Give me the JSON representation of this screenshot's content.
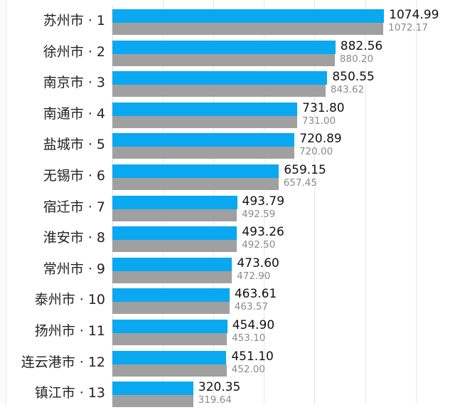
{
  "chart_data": {
    "type": "bar",
    "orientation": "horizontal",
    "title": "",
    "xlabel": "",
    "ylabel": "",
    "xlim": [
      0,
      1300
    ],
    "grid": true,
    "legend": null,
    "categories": [
      "苏州市 · 1",
      "徐州市 · 2",
      "南京市 · 3",
      "南通市 · 4",
      "盐城市 · 5",
      "无锡市 · 6",
      "宿迁市 · 7",
      "淮安市 · 8",
      "常州市 · 9",
      "泰州市 · 10",
      "扬州市 · 11",
      "连云港市 · 12",
      "镇江市 · 13"
    ],
    "series": [
      {
        "name": "current",
        "color": "#0aa8f0",
        "values": [
          1074.99,
          882.56,
          850.55,
          731.8,
          720.89,
          659.15,
          493.79,
          493.26,
          473.6,
          463.61,
          454.9,
          451.1,
          320.35
        ],
        "labels": [
          "1074.99",
          "882.56",
          "850.55",
          "731.80",
          "720.89",
          "659.15",
          "493.79",
          "493.26",
          "473.60",
          "463.61",
          "454.90",
          "451.10",
          "320.35"
        ]
      },
      {
        "name": "previous",
        "color": "#a0a0a0",
        "values": [
          1072.17,
          880.2,
          843.62,
          731.0,
          720.0,
          657.45,
          492.59,
          492.5,
          472.9,
          463.57,
          453.1,
          452.0,
          319.64
        ],
        "labels": [
          "1072.17",
          "880.20",
          "843.62",
          "731.00",
          "720.00",
          "657.45",
          "492.59",
          "492.50",
          "472.90",
          "463.57",
          "453.10",
          "452.00",
          "319.64"
        ]
      }
    ]
  }
}
